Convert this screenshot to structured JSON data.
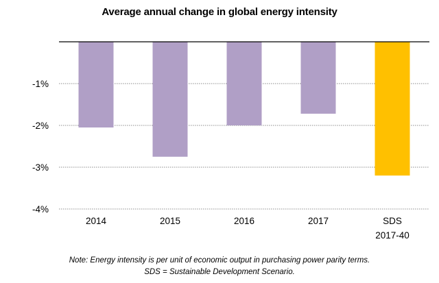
{
  "chart_data": {
    "type": "bar",
    "title": "Average annual change in global energy intensity",
    "categories": [
      "2014",
      "2015",
      "2016",
      "2017",
      "SDS\n2017-40"
    ],
    "category_lines": [
      [
        "2014"
      ],
      [
        "2015"
      ],
      [
        "2016"
      ],
      [
        "2017"
      ],
      [
        "SDS",
        "2017-40"
      ]
    ],
    "values": [
      -2.05,
      -2.75,
      -2.0,
      -1.72,
      -3.2
    ],
    "unit": "%",
    "bar_colors": [
      "#B09FC6",
      "#B09FC6",
      "#B09FC6",
      "#B09FC6",
      "#FFC000"
    ],
    "xlabel": "",
    "ylabel": "",
    "ylim": [
      -4,
      0
    ],
    "yticks": [
      -1,
      -2,
      -3,
      -4
    ],
    "ytick_labels": [
      "-1%",
      "-2%",
      "-3%",
      "-4%"
    ],
    "grid": true,
    "grid_style": "dotted",
    "legend": "none"
  },
  "notes": {
    "line1": "Note: Energy intensity is per unit of economic output in purchasing power parity terms.",
    "line2": "SDS = Sustainable Development Scenario."
  }
}
